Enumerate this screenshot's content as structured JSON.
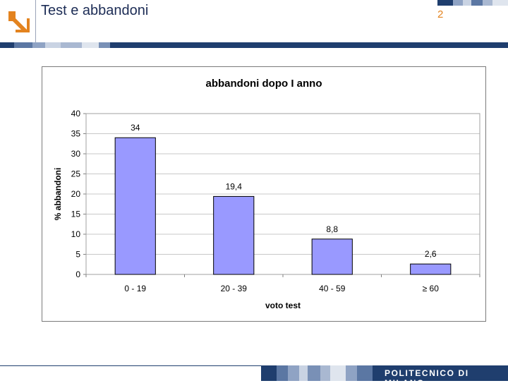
{
  "header": {
    "title": "Test e abbandoni",
    "page_number": "2",
    "logo_icon": "arrow-down-right-icon"
  },
  "footer": {
    "institution": "POLITECNICO DI MILANO"
  },
  "colors": {
    "accent": "#e3831f",
    "navy": "#1f3e6e",
    "bar": "#9999ff"
  },
  "chart_data": {
    "type": "bar",
    "title": "abbandoni dopo I anno",
    "xlabel": "voto test",
    "ylabel": "% abbandoni",
    "categories": [
      "0 - 19",
      "20 - 39",
      "40 - 59",
      "≥ 60"
    ],
    "values": [
      34,
      19.4,
      8.8,
      2.6
    ],
    "value_labels": [
      "34",
      "19,4",
      "8,8",
      "2,6"
    ],
    "ylim": [
      0,
      40
    ],
    "yticks": [
      0,
      5,
      10,
      15,
      20,
      25,
      30,
      35,
      40
    ],
    "grid": true,
    "legend": "none"
  }
}
